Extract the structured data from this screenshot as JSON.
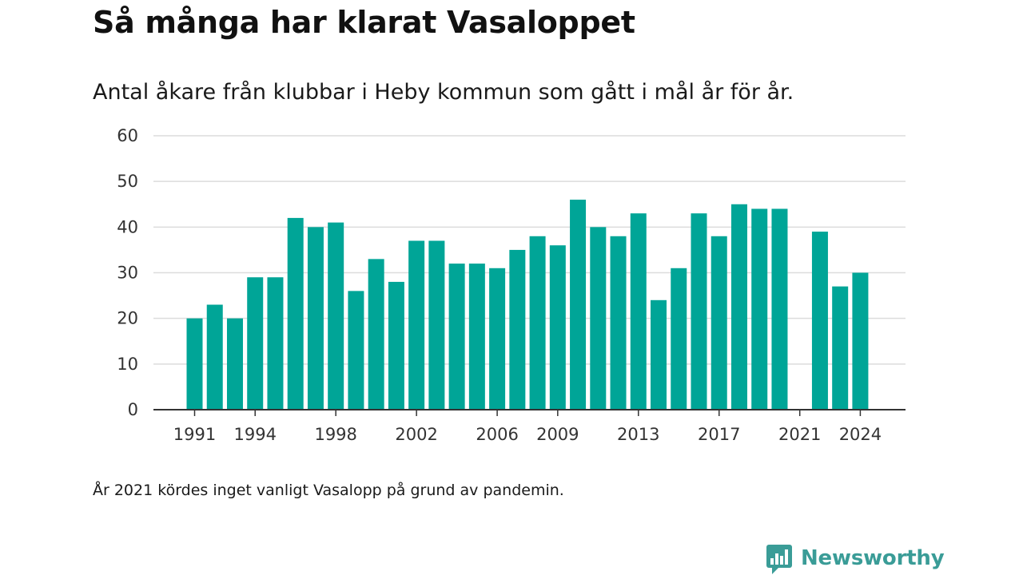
{
  "header": {
    "title": "Så många har klarat Vasaloppet",
    "subtitle": "Antal åkare från klubbar i Heby kommun som gått i mål år för år."
  },
  "footnote": "År 2021 kördes inget vanligt Vasalopp på grund av pandemin.",
  "brand": {
    "name": "Newsworthy",
    "icon": "newsworthy-logo-icon",
    "color": "#3a9c97"
  },
  "colors": {
    "bar": "#00a597",
    "grid": "#dcdcdc",
    "axis": "#333333"
  },
  "chart_data": {
    "type": "bar",
    "title": "Så många har klarat Vasaloppet",
    "subtitle": "Antal åkare från klubbar i Heby kommun som gått i mål år för år.",
    "xlabel": "",
    "ylabel": "",
    "ylim": [
      0,
      60
    ],
    "yticks": [
      0,
      10,
      20,
      30,
      40,
      50,
      60
    ],
    "xticks": [
      1991,
      1994,
      1998,
      2002,
      2006,
      2009,
      2013,
      2017,
      2021,
      2024
    ],
    "grid": true,
    "categories": [
      1991,
      1992,
      1993,
      1994,
      1995,
      1996,
      1997,
      1998,
      1999,
      2000,
      2001,
      2002,
      2003,
      2004,
      2005,
      2006,
      2007,
      2008,
      2009,
      2010,
      2011,
      2012,
      2013,
      2014,
      2015,
      2016,
      2017,
      2018,
      2019,
      2020,
      2021,
      2022,
      2023,
      2024
    ],
    "values": [
      20,
      23,
      20,
      29,
      29,
      42,
      40,
      41,
      26,
      33,
      28,
      37,
      37,
      32,
      32,
      31,
      35,
      38,
      36,
      46,
      40,
      38,
      43,
      24,
      31,
      43,
      38,
      45,
      44,
      44,
      null,
      39,
      27,
      30
    ]
  }
}
